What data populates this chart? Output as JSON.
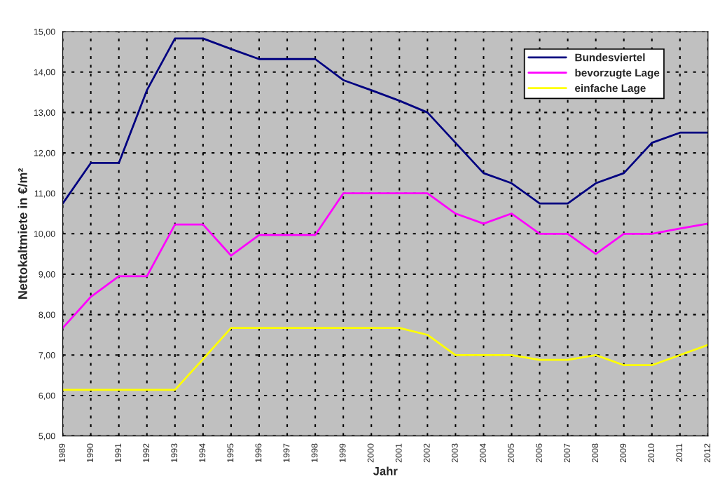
{
  "chart_data": {
    "type": "line",
    "xlabel": "Jahr",
    "ylabel": "Nettokaltmiete in €/m²",
    "categories": [
      "1989",
      "1990",
      "1991",
      "1992",
      "1993",
      "1994",
      "1995",
      "1996",
      "1997",
      "1998",
      "1999",
      "2000",
      "2001",
      "2002",
      "2003",
      "2004",
      "2005",
      "2006",
      "2007",
      "2008",
      "2009",
      "2010",
      "2011",
      "2012"
    ],
    "series": [
      {
        "name": "Bundesviertel",
        "color": "#000080",
        "values": [
          10.75,
          11.75,
          11.75,
          13.55,
          14.83,
          14.83,
          14.57,
          14.32,
          14.32,
          14.32,
          13.8,
          13.55,
          13.29,
          13.0,
          12.25,
          11.5,
          11.25,
          10.75,
          10.75,
          11.25,
          11.5,
          12.25,
          12.5,
          12.5
        ]
      },
      {
        "name": "bevorzugte Lage",
        "color": "#ff00ff",
        "values": [
          7.67,
          8.44,
          8.95,
          8.95,
          10.23,
          10.23,
          9.46,
          9.97,
          9.97,
          9.97,
          11.0,
          11.0,
          11.0,
          11.0,
          10.5,
          10.25,
          10.5,
          10.0,
          10.0,
          9.5,
          10.0,
          10.0,
          10.13,
          10.25
        ]
      },
      {
        "name": "einfache Lage",
        "color": "#ffff00",
        "values": [
          6.14,
          6.14,
          6.14,
          6.14,
          6.14,
          6.9,
          7.67,
          7.67,
          7.67,
          7.67,
          7.67,
          7.67,
          7.67,
          7.5,
          7.0,
          7.0,
          7.0,
          6.88,
          6.88,
          7.0,
          6.75,
          6.75,
          7.0,
          7.25
        ]
      }
    ],
    "ylim": [
      5,
      15
    ],
    "yticks": [
      {
        "value": 5,
        "label": "5,00"
      },
      {
        "value": 6,
        "label": "6,00"
      },
      {
        "value": 7,
        "label": "7,00"
      },
      {
        "value": 8,
        "label": "8,00"
      },
      {
        "value": 9,
        "label": "9,00"
      },
      {
        "value": 10,
        "label": "10,00"
      },
      {
        "value": 11,
        "label": "11,00"
      },
      {
        "value": 12,
        "label": "12,00"
      },
      {
        "value": 13,
        "label": "13,00"
      },
      {
        "value": 14,
        "label": "14,00"
      },
      {
        "value": 15,
        "label": "15,00"
      }
    ],
    "grid": true,
    "legend": "top right",
    "marker": "none",
    "line_style": "solid"
  }
}
